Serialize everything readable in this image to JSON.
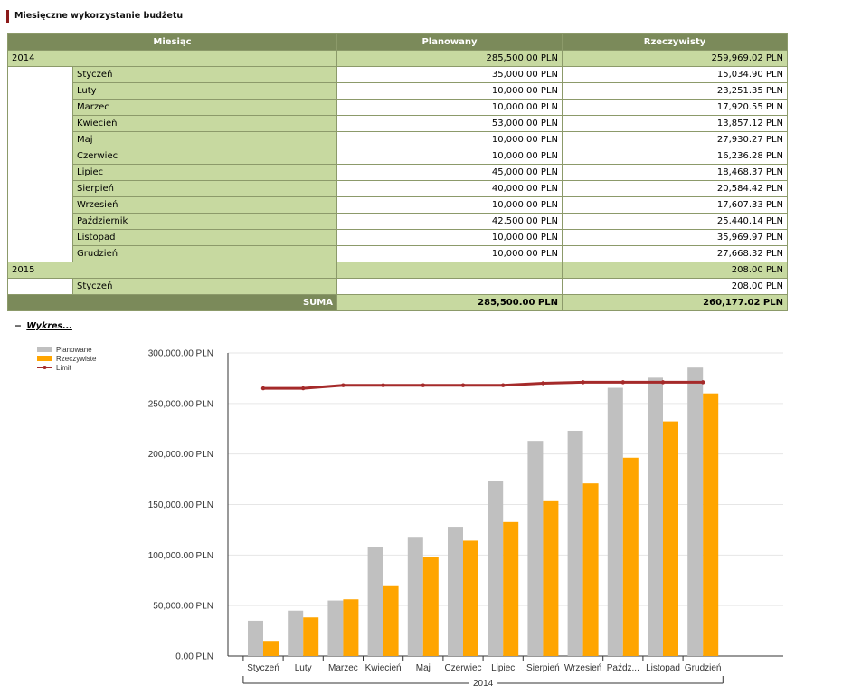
{
  "title": "Miesięczne wykorzystanie budżetu",
  "table": {
    "headers": [
      "Miesiąc",
      "Planowany",
      "Rzeczywisty"
    ],
    "groups": [
      {
        "year": "2014",
        "planned": "285,500.00 PLN",
        "actual": "259,969.02 PLN",
        "rows": [
          {
            "month": "Styczeń",
            "planned": "35,000.00 PLN",
            "actual": "15,034.90 PLN"
          },
          {
            "month": "Luty",
            "planned": "10,000.00 PLN",
            "actual": "23,251.35 PLN"
          },
          {
            "month": "Marzec",
            "planned": "10,000.00 PLN",
            "actual": "17,920.55 PLN"
          },
          {
            "month": "Kwiecień",
            "planned": "53,000.00 PLN",
            "actual": "13,857.12 PLN"
          },
          {
            "month": "Maj",
            "planned": "10,000.00 PLN",
            "actual": "27,930.27 PLN"
          },
          {
            "month": "Czerwiec",
            "planned": "10,000.00 PLN",
            "actual": "16,236.28 PLN"
          },
          {
            "month": "Lipiec",
            "planned": "45,000.00 PLN",
            "actual": "18,468.37 PLN"
          },
          {
            "month": "Sierpień",
            "planned": "40,000.00 PLN",
            "actual": "20,584.42 PLN"
          },
          {
            "month": "Wrzesień",
            "planned": "10,000.00 PLN",
            "actual": "17,607.33 PLN"
          },
          {
            "month": "Październik",
            "planned": "42,500.00 PLN",
            "actual": "25,440.14 PLN"
          },
          {
            "month": "Listopad",
            "planned": "10,000.00 PLN",
            "actual": "35,969.97 PLN"
          },
          {
            "month": "Grudzień",
            "planned": "10,000.00 PLN",
            "actual": "27,668.32 PLN"
          }
        ]
      },
      {
        "year": "2015",
        "planned": "",
        "actual": "208.00 PLN",
        "rows": [
          {
            "month": "Styczeń",
            "planned": "",
            "actual": "208.00 PLN"
          }
        ]
      }
    ],
    "sum_label": "SUMA",
    "sum_planned": "285,500.00 PLN",
    "sum_actual": "260,177.02 PLN"
  },
  "chart_toggle": {
    "icon": "minus-icon",
    "symbol": "−",
    "label": "Wykres..."
  },
  "chart_data": {
    "type": "bar",
    "categories": [
      "Styczeń",
      "Luty",
      "Marzec",
      "Kwiecień",
      "Maj",
      "Czerwiec",
      "Lipiec",
      "Sierpień",
      "Wrzesień",
      "Paźdz...",
      "Listopad",
      "Grudzień"
    ],
    "group_label": "2014",
    "series": [
      {
        "name": "Planowane",
        "kind": "bar",
        "color": "#c0c0c0",
        "values": [
          35000,
          45000,
          55000,
          108000,
          118000,
          128000,
          173000,
          213000,
          223000,
          265500,
          275500,
          285500
        ]
      },
      {
        "name": "Rzeczywiste",
        "kind": "bar",
        "color": "#ffa500",
        "values": [
          15035,
          38286,
          56207,
          70064,
          97994,
          114230,
          132699,
          153283,
          170890,
          196330,
          232300,
          259969
        ]
      },
      {
        "name": "Limit",
        "kind": "line",
        "color": "#a52a2a",
        "values": [
          265000,
          265000,
          268000,
          268000,
          268000,
          268000,
          268000,
          270000,
          271000,
          271000,
          271000,
          271000
        ]
      }
    ],
    "ylim": [
      0,
      300000
    ],
    "yticks": [
      0,
      50000,
      100000,
      150000,
      200000,
      250000,
      300000
    ],
    "ytick_labels": [
      "0.00 PLN",
      "50,000.00 PLN",
      "100,000.00 PLN",
      "150,000.00 PLN",
      "200,000.00 PLN",
      "250,000.00 PLN",
      "300,000.00 PLN"
    ],
    "grid": true,
    "legend_position": "top-left"
  }
}
